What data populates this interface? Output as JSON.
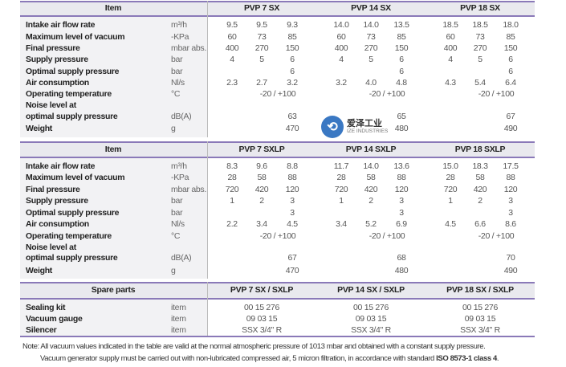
{
  "sections": [
    {
      "header": "Item",
      "models": [
        "PVP 7 SX",
        "PVP 14 SX",
        "PVP 18 SX"
      ],
      "rows": [
        {
          "label": "Intake air flow rate",
          "unit": "m³/h",
          "values": [
            [
              "9.5",
              "9.5",
              "9.3"
            ],
            [
              "14.0",
              "14.0",
              "13.5"
            ],
            [
              "18.5",
              "18.5",
              "18.0"
            ]
          ]
        },
        {
          "label": "Maximum level of vacuum",
          "unit": "-KPa",
          "values": [
            [
              "60",
              "73",
              "85"
            ],
            [
              "60",
              "73",
              "85"
            ],
            [
              "60",
              "73",
              "85"
            ]
          ]
        },
        {
          "label": "Final pressure",
          "unit": "mbar abs.",
          "values": [
            [
              "400",
              "270",
              "150"
            ],
            [
              "400",
              "270",
              "150"
            ],
            [
              "400",
              "270",
              "150"
            ]
          ]
        },
        {
          "label": "Supply pressure",
          "unit": "bar",
          "values": [
            [
              "4",
              "5",
              "6"
            ],
            [
              "4",
              "5",
              "6"
            ],
            [
              "4",
              "5",
              "6"
            ]
          ]
        },
        {
          "label": "Optimal supply pressure",
          "unit": "bar",
          "values": [
            [
              "",
              "",
              "6"
            ],
            [
              "",
              "",
              "6"
            ],
            [
              "",
              "",
              "6"
            ]
          ]
        },
        {
          "label": "Air consumption",
          "unit": "Nl/s",
          "values": [
            [
              "2.3",
              "2.7",
              "3.2"
            ],
            [
              "3.2",
              "4.0",
              "4.8"
            ],
            [
              "4.3",
              "5.4",
              "6.4"
            ]
          ]
        },
        {
          "label": "Operating temperature",
          "unit": "°C",
          "span": [
            "-20 / +100",
            "-20 / +100",
            "-20 / +100"
          ]
        },
        {
          "label": "Noise level at",
          "unit": ""
        },
        {
          "label": "optimal supply pressure",
          "unit": "dB(A)",
          "values": [
            [
              "",
              "",
              "63"
            ],
            [
              "",
              "",
              "65"
            ],
            [
              "",
              "",
              "67"
            ]
          ]
        },
        {
          "label": "Weight",
          "unit": "g",
          "values": [
            [
              "",
              "",
              "470"
            ],
            [
              "",
              "",
              "480"
            ],
            [
              "",
              "",
              "490"
            ]
          ]
        }
      ]
    },
    {
      "header": "Item",
      "models": [
        "PVP 7 SXLP",
        "PVP 14 SXLP",
        "PVP 18 SXLP"
      ],
      "rows": [
        {
          "label": "Intake air flow rate",
          "unit": "m³/h",
          "values": [
            [
              "8.3",
              "9.6",
              "8.8"
            ],
            [
              "11.7",
              "14.0",
              "13.6"
            ],
            [
              "15.0",
              "18.3",
              "17.5"
            ]
          ]
        },
        {
          "label": "Maximum level of vacuum",
          "unit": "-KPa",
          "values": [
            [
              "28",
              "58",
              "88"
            ],
            [
              "28",
              "58",
              "88"
            ],
            [
              "28",
              "58",
              "88"
            ]
          ]
        },
        {
          "label": "Final pressure",
          "unit": "mbar abs.",
          "values": [
            [
              "720",
              "420",
              "120"
            ],
            [
              "720",
              "420",
              "120"
            ],
            [
              "720",
              "420",
              "120"
            ]
          ]
        },
        {
          "label": "Supply pressure",
          "unit": "bar",
          "values": [
            [
              "1",
              "2",
              "3"
            ],
            [
              "1",
              "2",
              "3"
            ],
            [
              "1",
              "2",
              "3"
            ]
          ]
        },
        {
          "label": "Optimal supply pressure",
          "unit": "bar",
          "values": [
            [
              "",
              "",
              "3"
            ],
            [
              "",
              "",
              "3"
            ],
            [
              "",
              "",
              "3"
            ]
          ]
        },
        {
          "label": "Air consumption",
          "unit": "Nl/s",
          "values": [
            [
              "2.2",
              "3.4",
              "4.5"
            ],
            [
              "3.4",
              "5.2",
              "6.9"
            ],
            [
              "4.5",
              "6.6",
              "8.6"
            ]
          ]
        },
        {
          "label": "Operating temperature",
          "unit": "°C",
          "span": [
            "-20 / +100",
            "-20 / +100",
            "-20 / +100"
          ]
        },
        {
          "label": "Noise level at",
          "unit": ""
        },
        {
          "label": "optimal supply pressure",
          "unit": "dB(A)",
          "values": [
            [
              "",
              "",
              "67"
            ],
            [
              "",
              "",
              "68"
            ],
            [
              "",
              "",
              "70"
            ]
          ]
        },
        {
          "label": "Weight",
          "unit": "g",
          "values": [
            [
              "",
              "",
              "470"
            ],
            [
              "",
              "",
              "480"
            ],
            [
              "",
              "",
              "490"
            ]
          ]
        }
      ]
    },
    {
      "header": "Spare parts",
      "models": [
        "PVP 7 SX / SXLP",
        "PVP 14 SX / SXLP",
        "PVP 18 SX / SXLP"
      ],
      "rows": [
        {
          "label": "Sealing kit",
          "unit": "item",
          "center": [
            "00 15 276",
            "00 15 276",
            "00 15 276"
          ]
        },
        {
          "label": "Vacuum gauge",
          "unit": "item",
          "center": [
            "09 03 15",
            "09 03 15",
            "09 03 15"
          ]
        },
        {
          "label": "Silencer",
          "unit": "item",
          "center": [
            "SSX 3/4\" R",
            "SSX 3/4\" R",
            "SSX 3/4\" R"
          ]
        }
      ]
    }
  ],
  "notes": {
    "line1": "Note:  All vacuum values indicated in the table are valid at the normal atmospheric pressure of 1013 mbar and obtained with a constant supply pressure.",
    "line2_prefix": "Vacuum generator supply must be carried out with non-lubricated compressed air, 5 micron filtration, in accordance with standard ",
    "line2_bold": "ISO 8573-1 class 4",
    "line2_suffix": "."
  },
  "watermark": {
    "cn": "爱泽工业",
    "en": "IZE INDUSTRIES"
  },
  "colors": {
    "accent": "#8a79b8",
    "band": "#e9e9ee"
  }
}
